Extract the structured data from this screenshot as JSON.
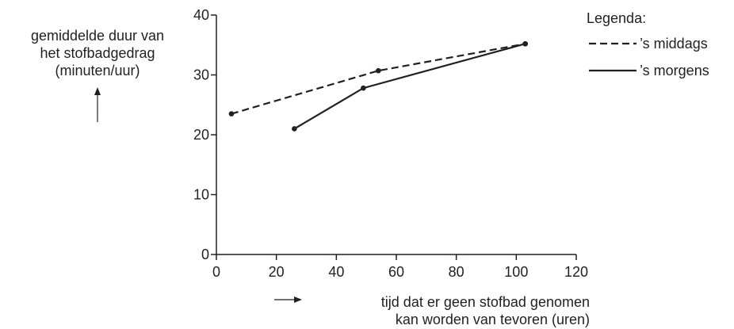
{
  "chart_data": {
    "type": "line",
    "ylabel_lines": [
      "gemiddelde duur van",
      "het stofbadgedrag",
      "(minuten/uur)"
    ],
    "xlabel_lines": [
      "tijd dat er geen stofbad genomen",
      "kan worden van tevoren (uren)"
    ],
    "xlim": [
      0,
      120
    ],
    "ylim": [
      0,
      40
    ],
    "x_ticks": [
      "0",
      "20",
      "40",
      "60",
      "80",
      "100",
      "120"
    ],
    "y_ticks": [
      "0",
      "10",
      "20",
      "30",
      "40"
    ],
    "grid": false,
    "legend": {
      "title": "Legenda:",
      "placement": "top-right"
    },
    "series": [
      {
        "name": "’s middags",
        "style": "dashed",
        "color": "#231f20",
        "points": [
          {
            "x": 5,
            "y": 23.5
          },
          {
            "x": 54,
            "y": 30.7
          },
          {
            "x": 103,
            "y": 35.2
          }
        ]
      },
      {
        "name": "’s morgens",
        "style": "solid",
        "color": "#231f20",
        "points": [
          {
            "x": 26,
            "y": 21
          },
          {
            "x": 49,
            "y": 27.8
          },
          {
            "x": 103,
            "y": 35.2
          }
        ]
      }
    ]
  }
}
